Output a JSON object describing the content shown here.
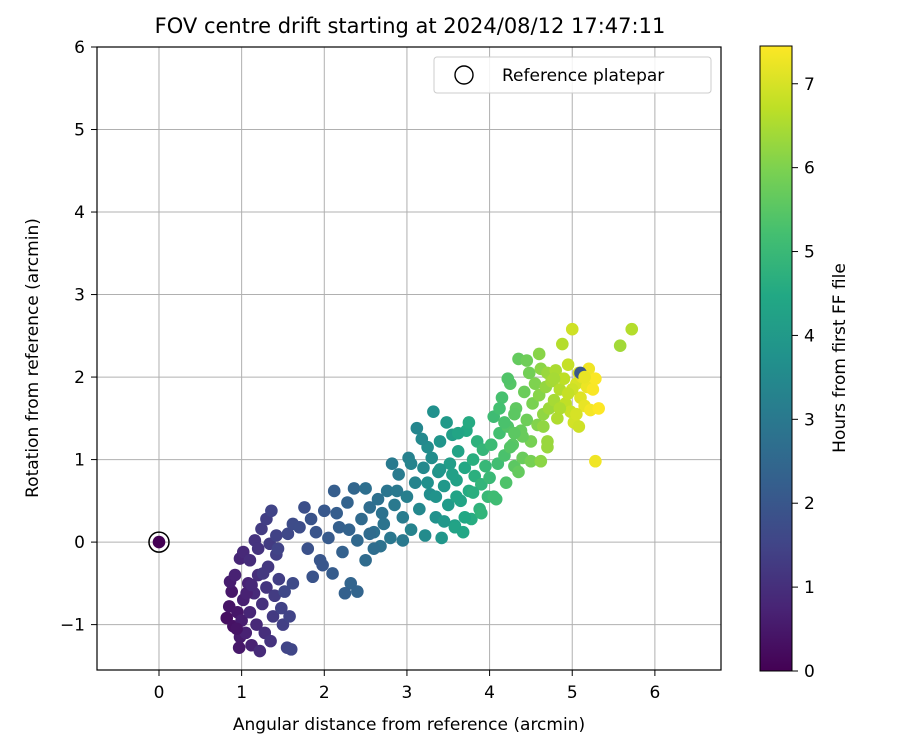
{
  "chart_data": {
    "type": "scatter",
    "title": "FOV centre drift starting at 2024/08/12 17:47:11",
    "xlabel": "Angular distance from reference (arcmin)",
    "ylabel": "Rotation from reference (arcmin)",
    "xlim": [
      -0.75,
      6.8
    ],
    "ylim": [
      -1.55,
      6.0
    ],
    "x_ticks": [
      0,
      1,
      2,
      3,
      4,
      5,
      6
    ],
    "y_ticks": [
      -1,
      0,
      1,
      2,
      3,
      4,
      5,
      6
    ],
    "y_tick_labels": [
      "−1",
      "0",
      "1",
      "2",
      "3",
      "4",
      "5",
      "6"
    ],
    "grid": true,
    "legend": {
      "position": "top-right",
      "entries": [
        "Reference platepar"
      ]
    },
    "reference_point": {
      "x": 0,
      "y": 0
    },
    "colorbar": {
      "label": "Hours from first FF file",
      "range": [
        0,
        7.45
      ],
      "ticks": [
        0,
        1,
        2,
        3,
        4,
        5,
        6,
        7
      ],
      "colormap": "viridis"
    },
    "series": [
      {
        "points_x_y_hours": [
          [
            0.0,
            0.0,
            0.0
          ],
          [
            0.82,
            -0.92,
            0.3
          ],
          [
            0.85,
            -0.78,
            0.4
          ],
          [
            0.9,
            -1.02,
            0.35
          ],
          [
            0.88,
            -0.6,
            0.5
          ],
          [
            0.95,
            -0.85,
            0.45
          ],
          [
            0.98,
            -1.15,
            0.55
          ],
          [
            1.0,
            -0.95,
            0.6
          ],
          [
            1.02,
            -0.7,
            0.65
          ],
          [
            0.97,
            -1.28,
            0.5
          ],
          [
            1.05,
            -1.1,
            0.7
          ],
          [
            1.08,
            -0.5,
            0.75
          ],
          [
            1.1,
            -0.85,
            0.8
          ],
          [
            1.12,
            -1.25,
            0.7
          ],
          [
            1.15,
            -0.62,
            0.9
          ],
          [
            1.18,
            -1.0,
            0.85
          ],
          [
            1.2,
            -0.4,
            1.0
          ],
          [
            1.22,
            -1.32,
            0.9
          ],
          [
            1.25,
            -0.75,
            1.05
          ],
          [
            1.28,
            -1.1,
            1.0
          ],
          [
            1.3,
            -0.55,
            1.15
          ],
          [
            1.32,
            -0.3,
            1.2
          ],
          [
            1.35,
            -1.2,
            1.1
          ],
          [
            1.38,
            -0.9,
            1.25
          ],
          [
            1.4,
            -0.65,
            1.3
          ],
          [
            1.42,
            -0.15,
            1.4
          ],
          [
            1.45,
            -0.45,
            1.35
          ],
          [
            1.48,
            -0.8,
            1.45
          ],
          [
            1.5,
            -1.0,
            1.4
          ],
          [
            1.55,
            -1.28,
            1.5
          ],
          [
            1.6,
            -1.3,
            1.55
          ],
          [
            1.52,
            -0.6,
            1.6
          ],
          [
            1.58,
            -0.9,
            1.5
          ],
          [
            1.62,
            -0.5,
            1.65
          ],
          [
            0.86,
            -0.48,
            0.6
          ],
          [
            0.92,
            -0.4,
            0.7
          ],
          [
            0.98,
            -0.2,
            0.8
          ],
          [
            1.02,
            -0.12,
            0.85
          ],
          [
            1.1,
            -0.22,
            0.95
          ],
          [
            1.16,
            0.02,
            1.1
          ],
          [
            1.24,
            0.16,
            1.3
          ],
          [
            1.3,
            0.28,
            1.35
          ],
          [
            1.36,
            0.38,
            1.5
          ],
          [
            1.34,
            -0.02,
            1.3
          ],
          [
            1.44,
            -0.08,
            1.5
          ],
          [
            1.26,
            -0.38,
            1.2
          ],
          [
            1.06,
            -0.62,
            0.7
          ],
          [
            0.94,
            -1.05,
            0.4
          ],
          [
            1.2,
            -0.08,
            1.1
          ],
          [
            1.42,
            0.08,
            1.45
          ],
          [
            1.12,
            -0.52,
            0.85
          ],
          [
            1.56,
            0.1,
            1.6
          ],
          [
            1.62,
            0.22,
            1.7
          ],
          [
            1.7,
            0.18,
            1.75
          ],
          [
            1.76,
            0.42,
            1.8
          ],
          [
            1.8,
            -0.08,
            1.85
          ],
          [
            1.84,
            0.28,
            1.9
          ],
          [
            1.9,
            0.12,
            1.95
          ],
          [
            1.95,
            -0.22,
            2.0
          ],
          [
            2.0,
            0.38,
            2.05
          ],
          [
            2.05,
            0.05,
            2.1
          ],
          [
            2.1,
            -0.38,
            2.15
          ],
          [
            2.12,
            0.62,
            2.2
          ],
          [
            2.18,
            0.18,
            2.25
          ],
          [
            2.22,
            -0.12,
            2.3
          ],
          [
            2.28,
            0.48,
            2.35
          ],
          [
            2.32,
            -0.5,
            2.4
          ],
          [
            2.36,
            0.65,
            2.45
          ],
          [
            2.4,
            0.02,
            2.5
          ],
          [
            2.45,
            0.28,
            2.55
          ],
          [
            2.5,
            -0.22,
            2.6
          ],
          [
            2.55,
            0.42,
            2.65
          ],
          [
            2.6,
            0.12,
            2.7
          ],
          [
            2.65,
            0.52,
            2.75
          ],
          [
            2.68,
            -0.05,
            2.8
          ],
          [
            2.72,
            0.22,
            2.85
          ],
          [
            2.76,
            0.62,
            2.9
          ],
          [
            2.8,
            0.05,
            2.95
          ],
          [
            2.85,
            0.45,
            3.0
          ],
          [
            2.9,
            0.82,
            3.05
          ],
          [
            2.95,
            0.3,
            3.1
          ],
          [
            2.25,
            -0.62,
            2.3
          ],
          [
            2.4,
            -0.6,
            2.4
          ],
          [
            1.98,
            -0.28,
            2.0
          ],
          [
            1.86,
            -0.42,
            1.9
          ],
          [
            2.15,
            0.35,
            2.2
          ],
          [
            2.3,
            0.15,
            2.35
          ],
          [
            2.55,
            0.1,
            2.6
          ],
          [
            2.7,
            0.35,
            2.8
          ],
          [
            2.88,
            0.62,
            3.0
          ],
          [
            2.5,
            0.65,
            2.7
          ],
          [
            2.6,
            -0.08,
            2.65
          ],
          [
            2.95,
            0.02,
            3.0
          ],
          [
            2.82,
            0.95,
            3.05
          ],
          [
            3.0,
            0.55,
            3.2
          ],
          [
            3.02,
            1.02,
            3.25
          ],
          [
            3.05,
            0.15,
            3.3
          ],
          [
            3.1,
            0.72,
            3.35
          ],
          [
            3.12,
            1.38,
            3.4
          ],
          [
            3.15,
            0.4,
            3.45
          ],
          [
            3.2,
            0.9,
            3.5
          ],
          [
            3.22,
            0.08,
            3.55
          ],
          [
            3.25,
            1.15,
            3.6
          ],
          [
            3.28,
            0.58,
            3.65
          ],
          [
            3.32,
            1.58,
            3.7
          ],
          [
            3.35,
            0.3,
            3.75
          ],
          [
            3.38,
            0.85,
            3.8
          ],
          [
            3.4,
            1.22,
            3.85
          ],
          [
            3.42,
            0.05,
            3.9
          ],
          [
            3.45,
            0.68,
            3.95
          ],
          [
            3.48,
            1.45,
            4.0
          ],
          [
            3.5,
            0.45,
            4.05
          ],
          [
            3.52,
            0.95,
            4.1
          ],
          [
            3.55,
            1.3,
            4.15
          ],
          [
            3.58,
            0.2,
            4.2
          ],
          [
            3.6,
            0.75,
            4.25
          ],
          [
            3.62,
            1.1,
            4.3
          ],
          [
            3.65,
            0.5,
            4.35
          ],
          [
            3.68,
            0.12,
            4.4
          ],
          [
            3.7,
            0.9,
            4.45
          ],
          [
            3.72,
            1.35,
            4.5
          ],
          [
            3.75,
            0.62,
            4.55
          ],
          [
            3.78,
            0.28,
            4.6
          ],
          [
            3.8,
            1.0,
            4.65
          ],
          [
            3.82,
            0.8,
            4.7
          ],
          [
            3.85,
            1.22,
            4.75
          ],
          [
            3.88,
            0.4,
            4.8
          ],
          [
            3.9,
            0.7,
            4.85
          ],
          [
            3.92,
            1.12,
            4.9
          ],
          [
            3.95,
            0.92,
            4.95
          ],
          [
            3.98,
            0.55,
            5.0
          ],
          [
            3.3,
            1.02,
            3.6
          ],
          [
            3.18,
            1.25,
            3.5
          ],
          [
            3.6,
            0.55,
            4.3
          ],
          [
            3.7,
            0.3,
            4.45
          ],
          [
            3.55,
            0.82,
            4.2
          ],
          [
            3.45,
            0.25,
            3.95
          ],
          [
            3.8,
            0.6,
            4.65
          ],
          [
            3.05,
            0.95,
            3.3
          ],
          [
            3.35,
            0.55,
            3.8
          ],
          [
            3.62,
            1.32,
            4.35
          ],
          [
            3.75,
            1.45,
            4.55
          ],
          [
            3.9,
            0.35,
            4.85
          ],
          [
            3.58,
            0.18,
            4.3
          ],
          [
            3.4,
            0.88,
            3.9
          ],
          [
            3.25,
            0.72,
            3.7
          ],
          [
            4.0,
            0.78,
            5.0
          ],
          [
            4.02,
            1.18,
            5.05
          ],
          [
            4.05,
            1.52,
            5.1
          ],
          [
            4.08,
            0.52,
            5.12
          ],
          [
            4.1,
            0.95,
            5.15
          ],
          [
            4.12,
            1.32,
            5.2
          ],
          [
            4.15,
            1.75,
            5.25
          ],
          [
            4.18,
            1.05,
            5.3
          ],
          [
            4.2,
            0.72,
            5.35
          ],
          [
            4.22,
            1.4,
            5.4
          ],
          [
            4.25,
            1.92,
            5.45
          ],
          [
            4.28,
            1.18,
            5.5
          ],
          [
            4.3,
            0.92,
            5.55
          ],
          [
            4.32,
            1.62,
            5.6
          ],
          [
            4.35,
            2.22,
            5.65
          ],
          [
            4.38,
            1.35,
            5.7
          ],
          [
            4.4,
            1.02,
            5.72
          ],
          [
            4.42,
            1.82,
            5.75
          ],
          [
            4.45,
            1.48,
            5.8
          ],
          [
            4.48,
            2.05,
            5.85
          ],
          [
            4.5,
            1.22,
            5.9
          ],
          [
            4.52,
            1.68,
            5.95
          ],
          [
            4.55,
            1.92,
            6.0
          ],
          [
            4.58,
            1.42,
            6.05
          ],
          [
            4.6,
            1.78,
            6.1
          ],
          [
            4.62,
            2.1,
            6.15
          ],
          [
            4.65,
            1.55,
            6.2
          ],
          [
            4.68,
            1.88,
            6.25
          ],
          [
            4.7,
            2.05,
            6.3
          ],
          [
            4.72,
            1.62,
            6.35
          ],
          [
            4.75,
            1.95,
            6.4
          ],
          [
            4.78,
            1.72,
            6.45
          ],
          [
            4.8,
            2.08,
            6.5
          ],
          [
            4.82,
            1.5,
            6.55
          ],
          [
            4.85,
            1.85,
            6.6
          ],
          [
            4.05,
            0.55,
            5.1
          ],
          [
            4.25,
            1.15,
            5.45
          ],
          [
            4.3,
            1.55,
            5.55
          ],
          [
            4.4,
            1.28,
            5.72
          ],
          [
            4.65,
            1.4,
            6.2
          ],
          [
            4.7,
            1.22,
            6.3
          ],
          [
            4.88,
            2.4,
            6.6
          ],
          [
            4.6,
            2.28,
            6.12
          ],
          [
            4.45,
            2.2,
            5.8
          ],
          [
            4.18,
            1.45,
            5.3
          ],
          [
            4.35,
            0.85,
            5.65
          ],
          [
            4.22,
            1.98,
            5.4
          ],
          [
            4.5,
            0.98,
            5.9
          ],
          [
            4.3,
            1.32,
            5.55
          ],
          [
            4.12,
            1.62,
            5.2
          ],
          [
            4.9,
            1.98,
            6.7
          ],
          [
            4.92,
            1.68,
            6.75
          ],
          [
            4.95,
            2.15,
            6.8
          ],
          [
            4.98,
            1.58,
            6.85
          ],
          [
            5.0,
            2.58,
            6.9
          ],
          [
            5.02,
            1.45,
            6.95
          ],
          [
            5.05,
            1.92,
            7.0
          ],
          [
            5.08,
            2.05,
            7.05
          ],
          [
            5.1,
            1.75,
            7.1
          ],
          [
            5.12,
            2.0,
            7.15
          ],
          [
            5.15,
            1.65,
            7.2
          ],
          [
            5.18,
            1.88,
            7.25
          ],
          [
            5.2,
            2.1,
            7.3
          ],
          [
            5.22,
            1.6,
            7.35
          ],
          [
            5.25,
            1.85,
            7.4
          ],
          [
            5.28,
            1.98,
            7.42
          ],
          [
            5.32,
            1.62,
            7.45
          ],
          [
            5.0,
            1.85,
            6.9
          ],
          [
            5.05,
            1.55,
            7.0
          ],
          [
            4.95,
            1.8,
            6.8
          ],
          [
            5.08,
            1.4,
            6.9
          ],
          [
            5.28,
            0.98,
            7.3
          ],
          [
            5.58,
            2.38,
            6.4
          ],
          [
            5.72,
            2.58,
            6.6
          ],
          [
            5.1,
            2.05,
            2.0
          ],
          [
            4.85,
            1.62,
            6.55
          ],
          [
            4.78,
            1.98,
            6.45
          ],
          [
            5.15,
            2.0,
            7.2
          ],
          [
            4.7,
            1.15,
            6.3
          ],
          [
            4.62,
            0.98,
            6.15
          ]
        ]
      }
    ]
  }
}
